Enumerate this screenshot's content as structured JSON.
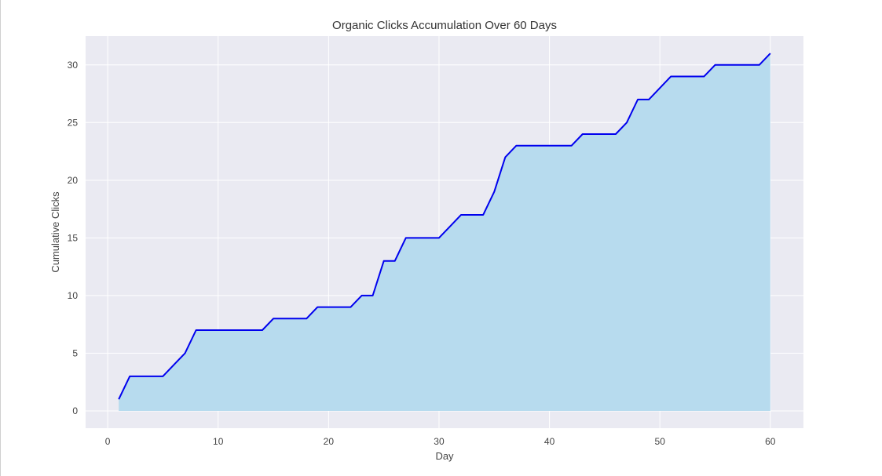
{
  "chart_data": {
    "type": "area",
    "title": "Organic Clicks Accumulation Over 60 Days",
    "xlabel": "Day",
    "ylabel": "Cumulative Clicks",
    "xlim": [
      -2,
      63
    ],
    "ylim": [
      -1.5,
      32.5
    ],
    "xticks": [
      0,
      10,
      20,
      30,
      40,
      50,
      60
    ],
    "yticks": [
      0,
      5,
      10,
      15,
      20,
      25,
      30
    ],
    "grid": true,
    "colors": {
      "line": "#0000ee",
      "fill": "#b7dbee",
      "plot_background": "#eaeaf2",
      "grid": "#ffffff"
    },
    "series": [
      {
        "x": [
          1,
          2,
          3,
          4,
          5,
          6,
          7,
          8,
          9,
          10,
          11,
          12,
          13,
          14,
          15,
          16,
          17,
          18,
          19,
          20,
          21,
          22,
          23,
          24,
          25,
          26,
          27,
          28,
          29,
          30,
          31,
          32,
          33,
          34,
          35,
          36,
          37,
          38,
          39,
          40,
          41,
          42,
          43,
          44,
          45,
          46,
          47,
          48,
          49,
          50,
          51,
          52,
          53,
          54,
          55,
          56,
          57,
          58,
          59,
          60
        ],
        "values": [
          1,
          3,
          3,
          3,
          3,
          4,
          5,
          7,
          7,
          7,
          7,
          7,
          7,
          7,
          8,
          8,
          8,
          8,
          9,
          9,
          9,
          9,
          10,
          10,
          13,
          13,
          15,
          15,
          15,
          15,
          16,
          17,
          17,
          17,
          19,
          22,
          23,
          23,
          23,
          23,
          23,
          23,
          24,
          24,
          24,
          24,
          25,
          27,
          27,
          28,
          29,
          29,
          29,
          29,
          30,
          30,
          30,
          30,
          30,
          31
        ]
      }
    ]
  }
}
